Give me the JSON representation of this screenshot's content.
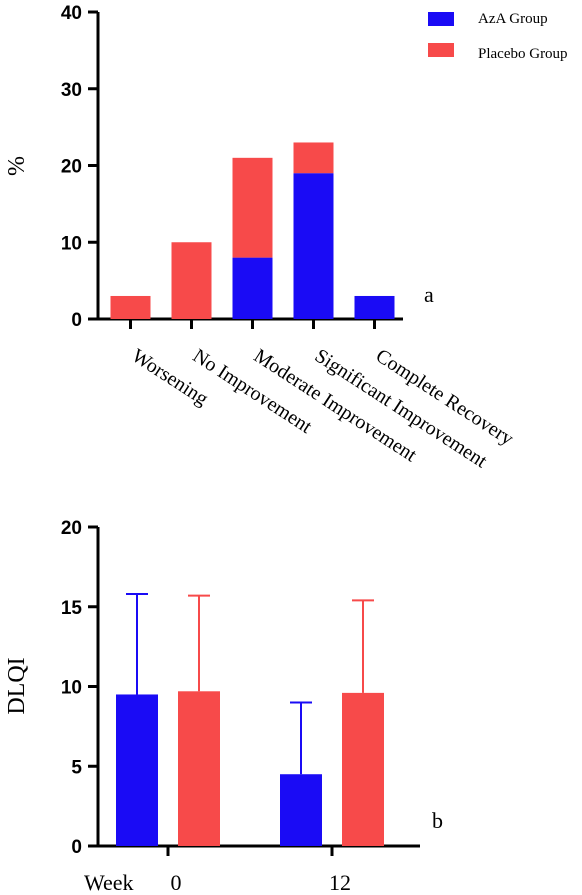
{
  "colors": {
    "azA": "#1a0bf5",
    "placebo": "#f74a4a",
    "axis": "#000000"
  },
  "chart_data": [
    {
      "type": "bar",
      "stacked": true,
      "panel_label": "a",
      "ylabel": "%",
      "ylim": [
        0,
        40
      ],
      "yticks": [
        "0",
        "10",
        "20",
        "30",
        "40"
      ],
      "categories": [
        "Worsening",
        "No Improvement",
        "Moderate Improvement",
        "Significant Improvement",
        "Complete Recovery"
      ],
      "series": [
        {
          "name": "AzA Group",
          "values": [
            0,
            0,
            8,
            19,
            3
          ]
        },
        {
          "name": "Placebo Group",
          "values": [
            3,
            10,
            13,
            4,
            0
          ]
        }
      ],
      "legend": "top-right"
    },
    {
      "type": "bar",
      "panel_label": "b",
      "ylabel": "DLQI",
      "ylim": [
        0,
        20
      ],
      "yticks": [
        "0",
        "5",
        "10",
        "15",
        "20"
      ],
      "xlabel": "Week",
      "categories": [
        "0",
        "12"
      ],
      "series": [
        {
          "name": "AzA Group",
          "values": [
            9.5,
            4.5
          ],
          "error_upper": [
            15.8,
            9.0
          ]
        },
        {
          "name": "Placebo Group",
          "values": [
            9.7,
            9.6
          ],
          "error_upper": [
            15.7,
            15.4
          ]
        }
      ]
    }
  ]
}
